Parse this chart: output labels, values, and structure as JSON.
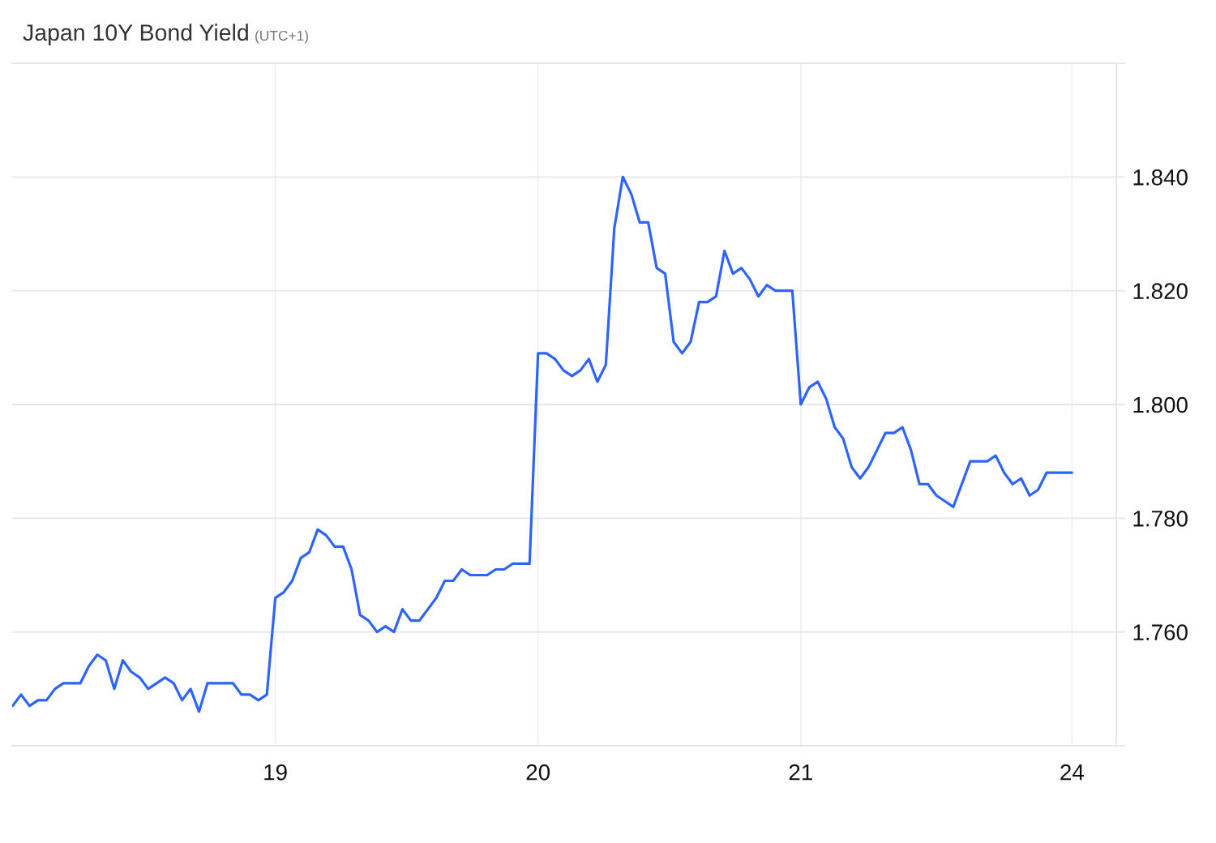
{
  "chart_data": {
    "type": "line",
    "title": "Japan 10Y Bond Yield",
    "subtitle": "(UTC+1)",
    "categories": [
      null,
      null,
      null,
      null,
      null,
      null,
      null,
      null,
      null,
      null,
      null,
      null,
      null,
      null,
      null,
      null,
      null,
      null,
      null,
      null,
      null,
      null,
      null,
      null,
      null,
      null,
      null,
      null,
      null,
      null,
      null,
      "19",
      null,
      null,
      null,
      null,
      null,
      null,
      null,
      null,
      null,
      null,
      null,
      null,
      null,
      null,
      null,
      null,
      null,
      null,
      null,
      null,
      null,
      null,
      null,
      null,
      null,
      null,
      null,
      null,
      null,
      null,
      "20",
      null,
      null,
      null,
      null,
      null,
      null,
      null,
      null,
      null,
      null,
      null,
      null,
      null,
      null,
      null,
      null,
      null,
      null,
      null,
      null,
      null,
      null,
      null,
      null,
      null,
      null,
      null,
      null,
      null,
      null,
      "21",
      null,
      null,
      null,
      null,
      null,
      null,
      null,
      null,
      null,
      null,
      null,
      null,
      null,
      null,
      null,
      null,
      null,
      null,
      null,
      null,
      null,
      null,
      null,
      null,
      null,
      null,
      null,
      null,
      null,
      null,
      null,
      "24"
    ],
    "series": [
      {
        "color": "#2e64fe",
        "values": [
          1.747,
          1.749,
          1.747,
          1.748,
          1.748,
          1.75,
          1.751,
          1.751,
          1.751,
          1.754,
          1.756,
          1.755,
          1.75,
          1.755,
          1.753,
          1.752,
          1.75,
          1.751,
          1.752,
          1.751,
          1.748,
          1.75,
          1.746,
          1.751,
          1.751,
          1.751,
          1.751,
          1.749,
          1.749,
          1.748,
          1.749,
          1.766,
          1.767,
          1.769,
          1.773,
          1.774,
          1.778,
          1.777,
          1.775,
          1.775,
          1.771,
          1.763,
          1.762,
          1.76,
          1.761,
          1.76,
          1.764,
          1.762,
          1.762,
          1.764,
          1.766,
          1.769,
          1.769,
          1.771,
          1.77,
          1.77,
          1.77,
          1.771,
          1.771,
          1.772,
          1.772,
          1.772,
          1.809,
          1.809,
          1.808,
          1.806,
          1.805,
          1.806,
          1.808,
          1.804,
          1.807,
          1.831,
          1.84,
          1.837,
          1.832,
          1.832,
          1.824,
          1.823,
          1.811,
          1.809,
          1.811,
          1.818,
          1.818,
          1.819,
          1.827,
          1.823,
          1.824,
          1.822,
          1.819,
          1.821,
          1.82,
          1.82,
          1.82,
          1.8,
          1.803,
          1.804,
          1.801,
          1.796,
          1.794,
          1.789,
          1.787,
          1.789,
          1.792,
          1.795,
          1.795,
          1.796,
          1.792,
          1.786,
          1.786,
          1.784,
          1.783,
          1.782,
          1.786,
          1.79,
          1.79,
          1.79,
          1.791,
          1.788,
          1.786,
          1.787,
          1.784,
          1.785,
          1.788,
          1.788,
          1.788,
          1.788
        ]
      }
    ],
    "ylim": [
      1.74,
      1.86
    ],
    "yticks": [
      {
        "value": 1.74,
        "label": null
      },
      {
        "value": 1.76,
        "label": "1.760"
      },
      {
        "value": 1.78,
        "label": "1.780"
      },
      {
        "value": 1.8,
        "label": "1.800"
      },
      {
        "value": 1.82,
        "label": "1.820"
      },
      {
        "value": 1.84,
        "label": "1.840"
      },
      {
        "value": 1.86,
        "label": null
      }
    ],
    "grid": true
  }
}
